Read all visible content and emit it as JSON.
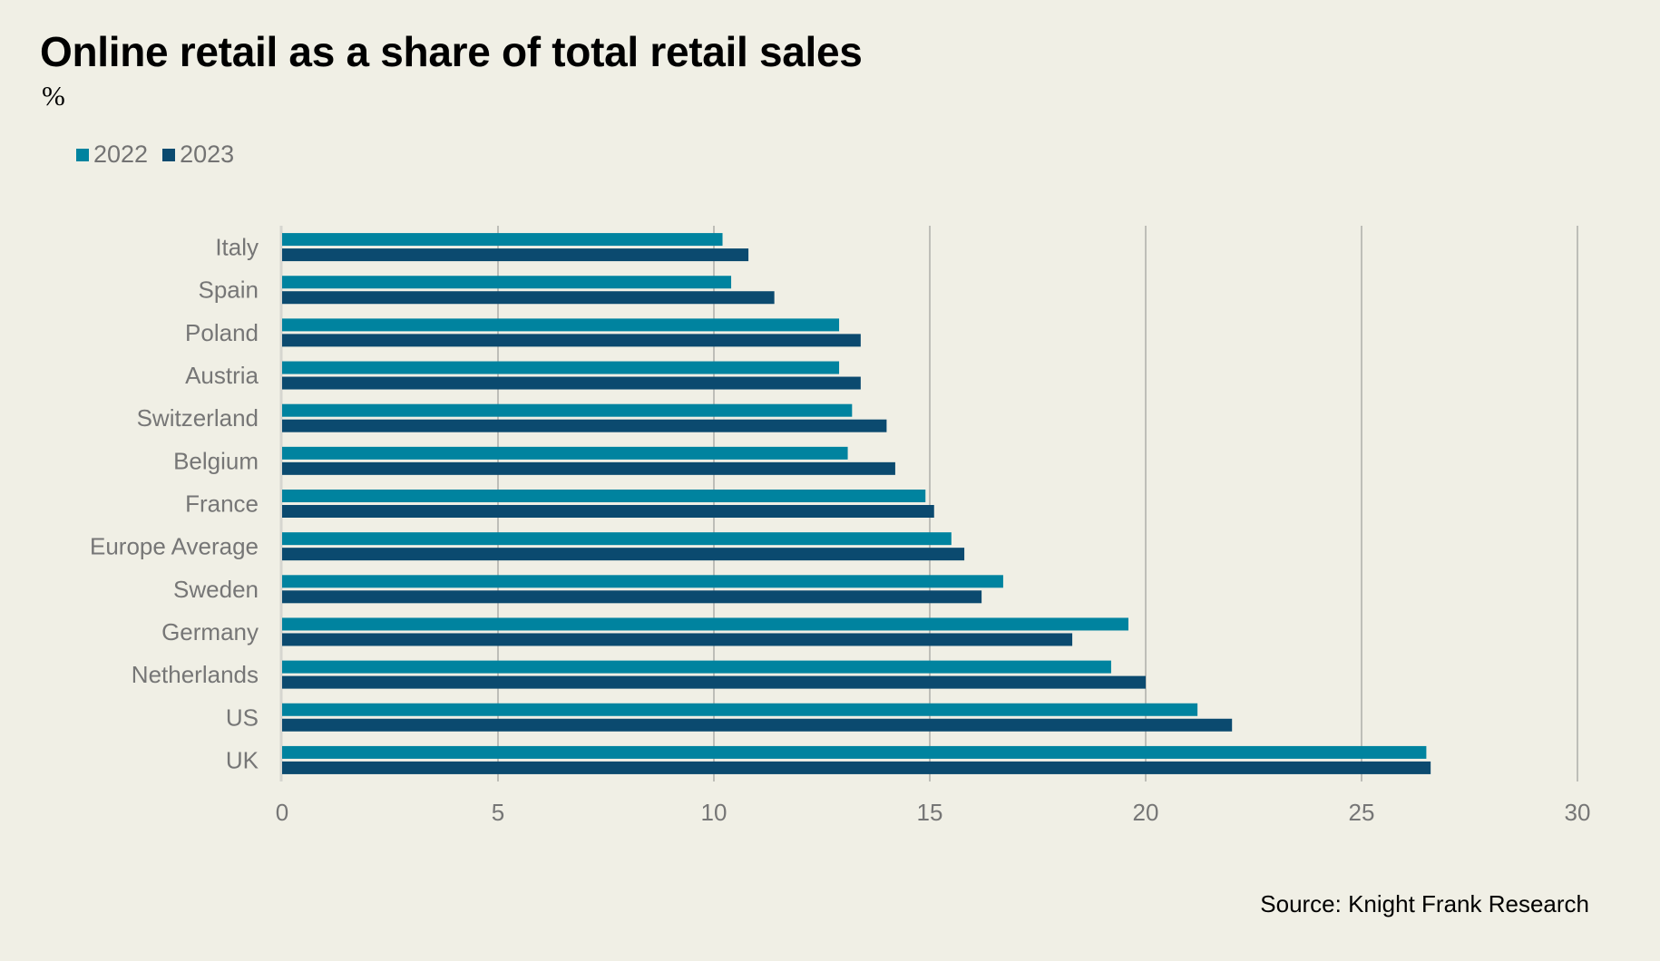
{
  "chart_data": {
    "type": "bar",
    "orientation": "horizontal",
    "title": "Online retail as a share of total retail sales",
    "subtitle": "%",
    "xlabel": "",
    "ylabel": "",
    "xlim": [
      0,
      30
    ],
    "x_ticks": [
      0,
      5,
      10,
      15,
      20,
      25,
      30
    ],
    "grid": "vertical",
    "legend_position": "top-left",
    "categories": [
      "Italy",
      "Spain",
      "Poland",
      "Austria",
      "Switzerland",
      "Belgium",
      "France",
      "Europe Average",
      "Sweden",
      "Germany",
      "Netherlands",
      "US",
      "UK"
    ],
    "series": [
      {
        "name": "2022",
        "color": "#00839F",
        "values": [
          10.2,
          10.4,
          12.9,
          12.9,
          13.2,
          13.1,
          14.9,
          15.5,
          16.7,
          19.6,
          19.2,
          21.2,
          26.5
        ]
      },
      {
        "name": "2023",
        "color": "#0B4A6F",
        "values": [
          10.8,
          11.4,
          13.4,
          13.4,
          14.0,
          14.2,
          15.1,
          15.8,
          16.2,
          18.3,
          20.0,
          22.0,
          26.6
        ]
      }
    ],
    "source": "Source: Knight Frank Research"
  },
  "colors": {
    "background": "#F0EFE5",
    "gridline": "#8C8C8C",
    "axis_line": "#D6D6D0",
    "label_text": "#767676"
  }
}
